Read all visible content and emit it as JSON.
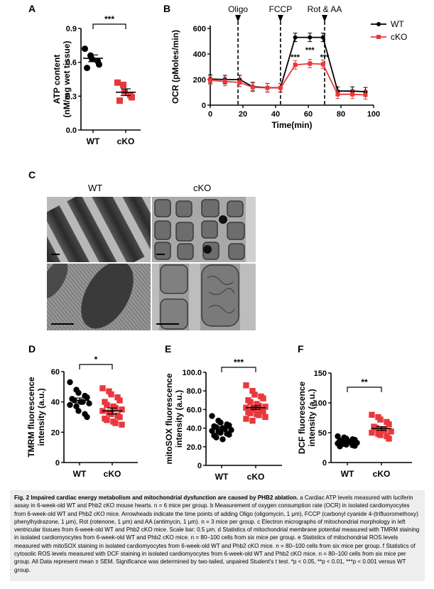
{
  "panels": {
    "A": {
      "letter": "A",
      "chart_data": {
        "type": "scatter",
        "ylabel_line1": "ATP content",
        "ylabel_line2": "(nM/mg wet tissue)",
        "ylim": [
          0.0,
          0.9
        ],
        "yticks": [
          "0.0",
          "0.3",
          "0.6",
          "0.9"
        ],
        "categories": [
          "WT",
          "cKO"
        ],
        "series": [
          {
            "values": [
              0.72,
              0.66,
              0.63,
              0.61,
              0.58,
              0.55
            ],
            "mean": 0.635,
            "sem": 0.03,
            "color": "#000000",
            "marker": "circle"
          },
          {
            "values": [
              0.42,
              0.4,
              0.34,
              0.31,
              0.29,
              0.26
            ],
            "mean": 0.335,
            "sem": 0.03,
            "color": "#e8383d",
            "marker": "square"
          }
        ],
        "significance": "***"
      }
    },
    "B": {
      "letter": "B",
      "chart_data": {
        "type": "line",
        "xlabel": "Time(min)",
        "ylabel": "OCR (pMoles/min)",
        "xlim": [
          0,
          100
        ],
        "ylim": [
          0,
          600
        ],
        "xticks": [
          "0",
          "20",
          "40",
          "60",
          "80",
          "100"
        ],
        "yticks": [
          "0",
          "200",
          "400",
          "600"
        ],
        "x": [
          0,
          9,
          18,
          26,
          35,
          43,
          52,
          61,
          69,
          78,
          87,
          95
        ],
        "series": [
          {
            "name": "WT",
            "values": [
              205,
              200,
              200,
              145,
              137,
              137,
              530,
              530,
              530,
              110,
              110,
              105
            ],
            "color": "#000000",
            "marker": "circle"
          },
          {
            "name": "cKO",
            "values": [
              195,
              185,
              178,
              140,
              135,
              135,
              315,
              325,
              320,
              85,
              85,
              80
            ],
            "color": "#e8383d",
            "marker": "square"
          }
        ],
        "injections": [
          {
            "label": "Oligo",
            "x": 17
          },
          {
            "label": "FCCP",
            "x": 43
          },
          {
            "label": "Rot & AA",
            "x": 70
          }
        ],
        "annotations": [
          "***",
          "***",
          "***"
        ],
        "legend": "top-right"
      }
    },
    "C": {
      "letter": "C",
      "col_labels": [
        "WT",
        "cKO"
      ]
    },
    "D": {
      "letter": "D",
      "chart_data": {
        "type": "scatter",
        "ylabel_line1": "TMRM fluorescence",
        "ylabel_line2": "intensity (a.u.)",
        "ylim": [
          0,
          60
        ],
        "yticks": [
          "0",
          "20",
          "40",
          "60"
        ],
        "categories": [
          "WT",
          "cKO"
        ],
        "series": [
          {
            "values": [
              53,
              48,
              46,
              44,
              43,
              42,
              41,
              40,
              40,
              39,
              38,
              37,
              34,
              32,
              30
            ],
            "mean": 41,
            "sem": 1.6,
            "color": "#000000",
            "marker": "circle"
          },
          {
            "values": [
              49,
              47,
              45,
              43,
              41,
              40,
              38,
              37,
              36,
              35,
              34,
              33,
              32,
              31,
              30,
              29,
              28,
              27,
              26,
              25
            ],
            "mean": 34,
            "sem": 2,
            "color": "#e8383d",
            "marker": "square"
          }
        ],
        "significance": "*"
      }
    },
    "E": {
      "letter": "E",
      "chart_data": {
        "type": "scatter",
        "ylabel_line1": "mitoSOX fluorescence",
        "ylabel_line2": "intensity (a.u.)",
        "ylim": [
          0,
          100
        ],
        "yticks": [
          "0",
          "20.0",
          "40.0",
          "60.0",
          "80.0",
          "100.0"
        ],
        "categories": [
          "WT",
          "cKO"
        ],
        "series": [
          {
            "values": [
              53,
              48,
              46,
              44,
              43,
              42,
              41,
              40,
              39,
              38,
              37,
              36,
              35,
              34,
              33,
              32,
              30,
              28
            ],
            "mean": 40,
            "sem": 1.5,
            "color": "#000000",
            "marker": "circle"
          },
          {
            "values": [
              86,
              80,
              76,
              74,
              72,
              70,
              68,
              66,
              64,
              63,
              62,
              61,
              60,
              59,
              58,
              57,
              56,
              55,
              54,
              52,
              50,
              48
            ],
            "mean": 62,
            "sem": 2,
            "color": "#e8383d",
            "marker": "square"
          }
        ],
        "significance": "***"
      }
    },
    "F": {
      "letter": "F",
      "chart_data": {
        "type": "scatter",
        "ylabel_line1": "DCF fluorescence",
        "ylabel_line2": "intensity (a.u.)",
        "ylim": [
          0,
          150
        ],
        "yticks": [
          "0",
          "50",
          "100",
          "150"
        ],
        "categories": [
          "WT",
          "cKO"
        ],
        "series": [
          {
            "values": [
              44,
              42,
              40,
              39,
              38,
              37,
              36,
              35,
              34,
              33,
              32,
              31,
              30,
              29,
              28,
              27
            ],
            "mean": 36,
            "sem": 1.5,
            "color": "#000000",
            "marker": "circle"
          },
          {
            "values": [
              80,
              76,
              72,
              68,
              64,
              60,
              58,
              56,
              54,
              52,
              50,
              48,
              46,
              44,
              40
            ],
            "mean": 57,
            "sem": 3,
            "color": "#e8383d",
            "marker": "square"
          }
        ],
        "significance": "**"
      }
    }
  },
  "caption": {
    "lead": "Fig. 2 Impaired cardiac energy metabolism and mitochondrial dysfunction are caused by PHB2 ablation.",
    "text": " a Cardiac ATP levels measured with luciferin assay in 6-week-old WT and Phb2 cKO mouse hearts. n = 6 mice per group. b Measurement of oxygen consumption rate (OCR) in isolated cardiomyocytes from 6-week-old WT and Phb2 cKO mice. Arrowheads indicate the time points of adding Oligo (oligomycin, 1 μm), FCCP (carbonyl cyanide 4-(trifluoromethoxy) phenylhydrazone, 1 μm), Rot (rotenone, 1 μm) and AA (antimycin, 1 μm). n = 3 mice per group. c Electron micrographs of mitochondrial morphology in left ventricular tissues from 6-week-old WT and Phb2 cKO mice. Scale bar: 0.5 μm. d Statistics of mitochondrial membrane potential measured with TMRM staining in isolated cardiomyocytes from 6-week-old WT and Phb2 cKO mice. n = 80–100 cells from six mice per group. e Statistics of mitochondrial ROS levels measured with mitoSOX staining in isolated cardiomyocytes from 6-week-old WT and Phb2 cKO mice. n = 80–100 cells from six mice per group. f Statistics of cytosolic ROS levels measured with DCF staining in isolated cardiomyocytes from 6-week-old WT and Phb2 cKO mice. n = 80–100 cells from six mice per group. All Data represent mean ± SEM. Significance was determined by two-tailed, unpaired Student's t test. *p < 0.05, **p < 0.01, ***p < 0.001 versus WT group."
  }
}
